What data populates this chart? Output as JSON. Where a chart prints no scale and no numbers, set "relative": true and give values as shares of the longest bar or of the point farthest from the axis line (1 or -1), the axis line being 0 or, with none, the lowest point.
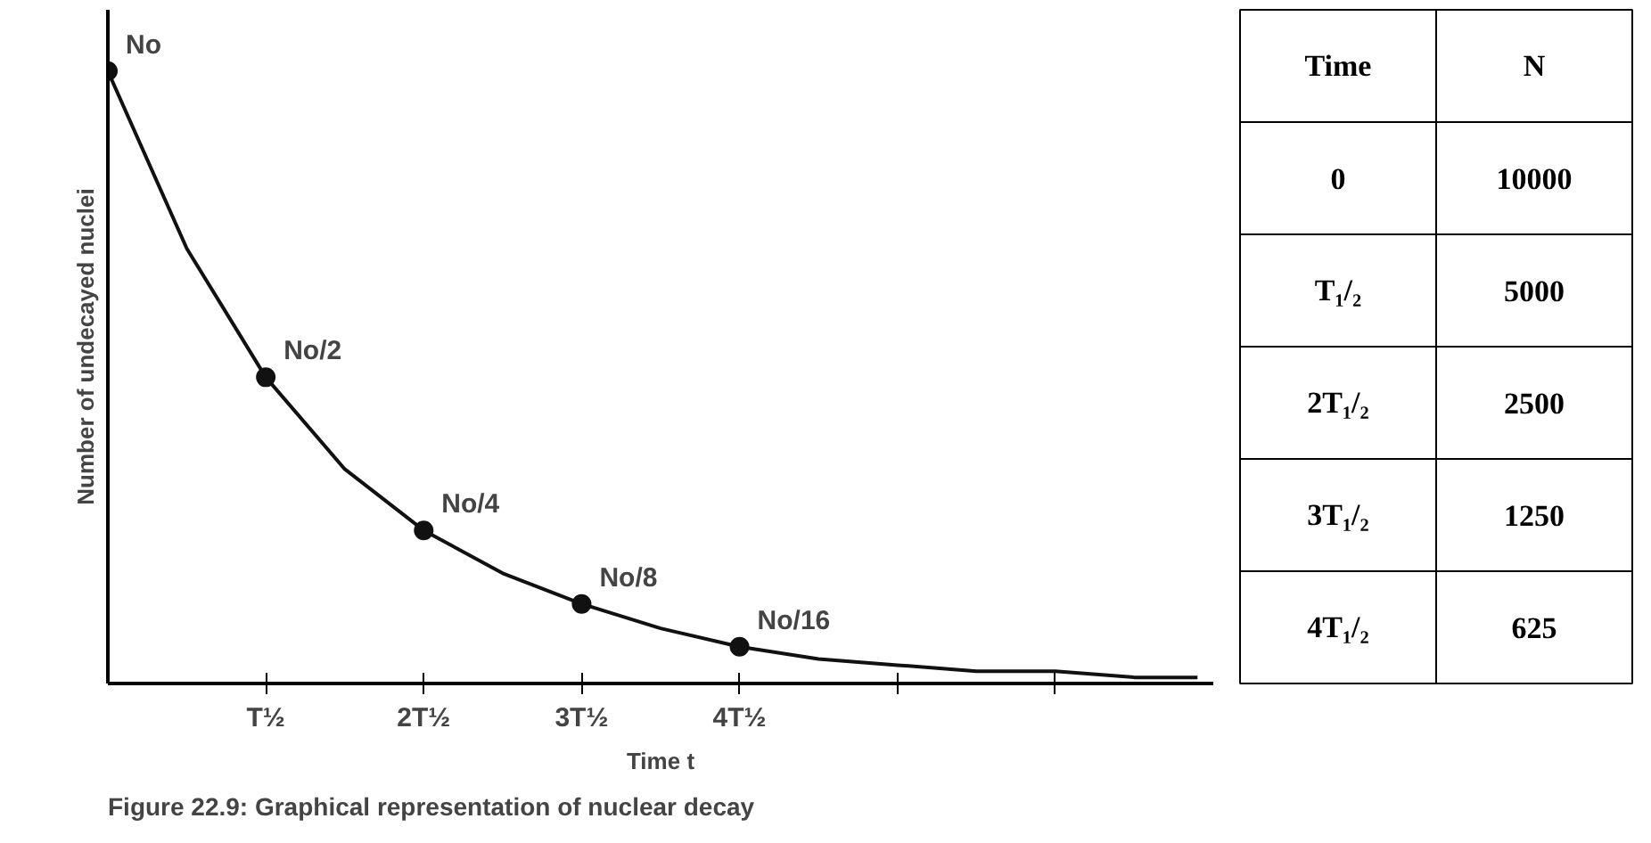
{
  "chart_data": [
    {
      "type": "line",
      "relative": true,
      "xlabel": "Time t",
      "ylabel": "Number of undecayed nuclei",
      "xlim": [
        0,
        7
      ],
      "xticks": [
        {
          "value": 1,
          "label": "T½"
        },
        {
          "value": 2,
          "label": "2T½"
        },
        {
          "value": 3,
          "label": "3T½"
        },
        {
          "value": 4,
          "label": "4T½"
        },
        {
          "value": 5,
          "label": null
        },
        {
          "value": 6,
          "label": null
        }
      ],
      "grid": false,
      "series": [
        {
          "type": "line",
          "color": "#111111",
          "marker": "none",
          "x": [
            0,
            0.5,
            1,
            1.5,
            2,
            2.5,
            3,
            3.5,
            4,
            4.5,
            5,
            5.5,
            6,
            6.5,
            6.9
          ],
          "values": [
            1,
            0.71,
            0.5,
            0.35,
            0.25,
            0.18,
            0.13,
            0.09,
            0.06,
            0.04,
            0.03,
            0.02,
            0.02,
            0.01,
            0.01
          ]
        },
        {
          "type": "scatter",
          "color": "#111111",
          "marker": "circle",
          "x": [
            0,
            1,
            2,
            3,
            4
          ],
          "values": [
            1,
            0.5,
            0.25,
            0.13,
            0.06
          ]
        }
      ],
      "annotations": [
        {
          "text": "No",
          "x": 0,
          "y": 1
        },
        {
          "text": "No/2",
          "x": 1,
          "y": 0.5
        },
        {
          "text": "No/4",
          "x": 2,
          "y": 0.25
        },
        {
          "text": "No/8",
          "x": 3,
          "y": 0.13
        },
        {
          "text": "No/16",
          "x": 4,
          "y": 0.06
        },
        "Figure 22.9: Graphical representation of nuclear decay"
      ]
    },
    {
      "type": "other",
      "annotations": [
        "Time",
        "N",
        "0",
        "10000",
        "T₁/₂",
        "5000",
        "2T₁/₂",
        "2500",
        "3T₁/₂",
        "1250",
        "4T₁/₂",
        "625"
      ]
    }
  ]
}
